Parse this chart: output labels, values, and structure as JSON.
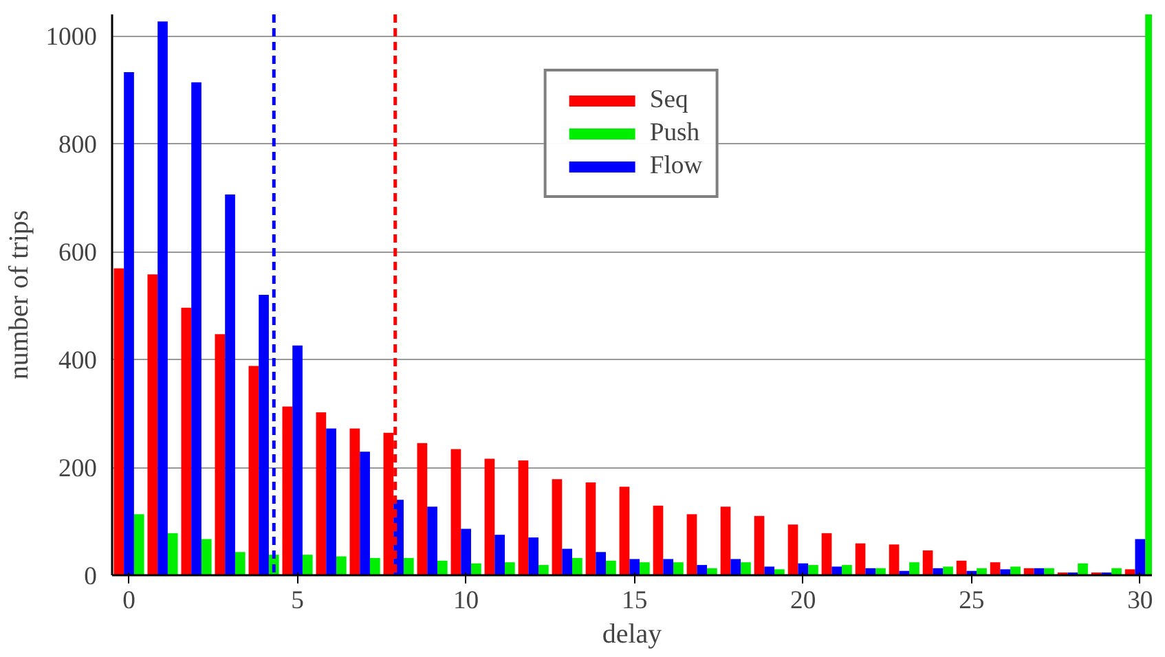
{
  "chart_data": {
    "type": "bar",
    "xlabel": "delay",
    "ylabel": "number of trips",
    "x": [
      0,
      1,
      2,
      3,
      4,
      5,
      6,
      7,
      8,
      9,
      10,
      11,
      12,
      13,
      14,
      15,
      16,
      17,
      18,
      19,
      20,
      21,
      22,
      23,
      24,
      25,
      26,
      27,
      28,
      29,
      30
    ],
    "series": [
      {
        "name": "Seq",
        "color": "#ff0000",
        "values": [
          569,
          558,
          496,
          447,
          388,
          313,
          302,
          272,
          264,
          245,
          234,
          216,
          213,
          178,
          172,
          164,
          129,
          113,
          127,
          110,
          94,
          78,
          59,
          57,
          46,
          27,
          24,
          13,
          5,
          5,
          11
        ]
      },
      {
        "name": "Push",
        "color": "#00ee00",
        "values": [
          113,
          78,
          67,
          43,
          38,
          38,
          35,
          32,
          32,
          27,
          22,
          24,
          19,
          32,
          27,
          24,
          24,
          13,
          24,
          11,
          19,
          19,
          13,
          24,
          16,
          13,
          16,
          13,
          22,
          13,
          1040
        ]
      },
      {
        "name": "Flow",
        "color": "#0000ff",
        "values": [
          933,
          1027,
          914,
          706,
          520,
          426,
          272,
          229,
          140,
          127,
          86,
          75,
          70,
          49,
          43,
          30,
          30,
          19,
          30,
          16,
          22,
          16,
          13,
          8,
          13,
          8,
          11,
          13,
          5,
          5,
          67
        ]
      }
    ],
    "xlim": [
      -0.5,
      30.35
    ],
    "ylim": [
      0,
      1040
    ],
    "xticks": [
      0,
      5,
      10,
      15,
      20,
      25,
      30
    ],
    "yticks": [
      0,
      200,
      400,
      600,
      800,
      1000
    ],
    "grid": "y",
    "legend": "top",
    "ref_lines": [
      {
        "axis": "x",
        "value": 4.3,
        "color": "#0000ff",
        "line_style": "dashed"
      },
      {
        "axis": "x",
        "value": 7.9,
        "color": "#ff0000",
        "line_style": "dashed"
      }
    ]
  }
}
